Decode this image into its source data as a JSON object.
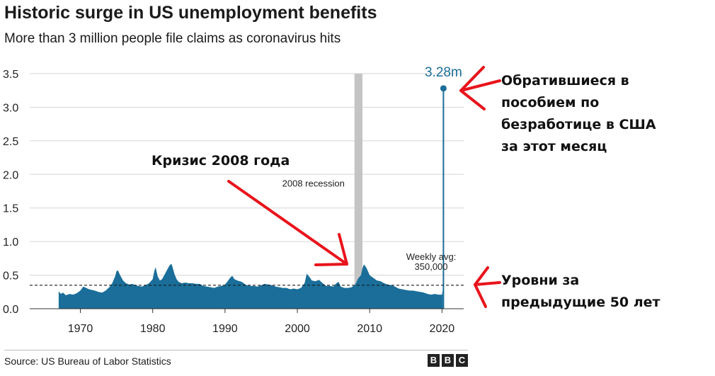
{
  "header": {
    "title": "Historic surge in US unemployment benefits",
    "subtitle": "More than 3 million people file claims as coronavirus hits"
  },
  "footer": {
    "source": "Source: US Bureau of Labor Statistics",
    "logo_letters": [
      "B",
      "B",
      "C"
    ]
  },
  "chart_data": {
    "type": "area",
    "title": "Historic surge in US unemployment benefits",
    "subtitle": "More than 3 million people file claims as coronavirus hits",
    "unit": "millions",
    "ylim": [
      0,
      3.5
    ],
    "xlim": [
      1963,
      2023
    ],
    "yticks": [
      "0.0",
      "0.5",
      "1.0",
      "1.5",
      "2.0",
      "2.5",
      "3.0",
      "3.5"
    ],
    "xticks": [
      "1970",
      "1980",
      "1990",
      "2000",
      "2010",
      "2020"
    ],
    "grid": true,
    "series": [
      {
        "name": "",
        "color": "#1a6e99",
        "x": [
          1967.0,
          1967.3,
          1967.6,
          1968.0,
          1968.5,
          1969.0,
          1969.5,
          1970.0,
          1970.4,
          1970.8,
          1971.2,
          1971.6,
          1972.0,
          1972.5,
          1973.0,
          1973.5,
          1974.0,
          1974.4,
          1974.8,
          1975.0,
          1975.2,
          1975.5,
          1975.9,
          1976.3,
          1976.8,
          1977.2,
          1977.6,
          1978.0,
          1978.5,
          1979.0,
          1979.5,
          1980.0,
          1980.2,
          1980.4,
          1980.7,
          1981.0,
          1981.3,
          1981.6,
          1982.0,
          1982.3,
          1982.6,
          1982.8,
          1983.0,
          1983.3,
          1983.6,
          1984.0,
          1984.5,
          1985.0,
          1985.5,
          1986.0,
          1986.5,
          1987.0,
          1987.5,
          1988.0,
          1988.5,
          1989.0,
          1989.5,
          1990.0,
          1990.3,
          1990.7,
          1991.0,
          1991.3,
          1991.7,
          1992.0,
          1992.3,
          1992.7,
          1993.0,
          1993.5,
          1994.0,
          1994.5,
          1995.0,
          1995.5,
          1996.0,
          1996.5,
          1997.0,
          1997.5,
          1998.0,
          1998.5,
          1999.0,
          1999.5,
          2000.0,
          2000.5,
          2001.0,
          2001.3,
          2001.7,
          2002.0,
          2002.5,
          2003.0,
          2003.5,
          2004.0,
          2004.5,
          2005.0,
          2005.3,
          2005.7,
          2006.0,
          2006.5,
          2007.0,
          2007.5,
          2008.0,
          2008.4,
          2008.8,
          2009.0,
          2009.2,
          2009.5,
          2009.8,
          2010.0,
          2010.5,
          2011.0,
          2011.5,
          2012.0,
          2012.5,
          2013.0,
          2013.5,
          2014.0,
          2014.5,
          2015.0,
          2015.5,
          2016.0,
          2016.5,
          2017.0,
          2017.5,
          2018.0,
          2018.5,
          2019.0,
          2019.5,
          2020.0,
          2020.1,
          2020.2
        ],
        "values": [
          0.26,
          0.22,
          0.24,
          0.2,
          0.22,
          0.21,
          0.23,
          0.27,
          0.33,
          0.31,
          0.29,
          0.28,
          0.27,
          0.25,
          0.24,
          0.27,
          0.32,
          0.38,
          0.48,
          0.56,
          0.57,
          0.5,
          0.42,
          0.38,
          0.36,
          0.37,
          0.35,
          0.34,
          0.33,
          0.35,
          0.38,
          0.44,
          0.55,
          0.62,
          0.48,
          0.42,
          0.44,
          0.5,
          0.58,
          0.64,
          0.67,
          0.6,
          0.52,
          0.44,
          0.4,
          0.38,
          0.39,
          0.38,
          0.38,
          0.37,
          0.37,
          0.34,
          0.33,
          0.32,
          0.31,
          0.33,
          0.34,
          0.36,
          0.4,
          0.46,
          0.49,
          0.44,
          0.42,
          0.41,
          0.4,
          0.37,
          0.35,
          0.34,
          0.34,
          0.33,
          0.35,
          0.37,
          0.36,
          0.35,
          0.33,
          0.32,
          0.31,
          0.31,
          0.29,
          0.3,
          0.29,
          0.31,
          0.38,
          0.52,
          0.47,
          0.42,
          0.41,
          0.43,
          0.38,
          0.34,
          0.34,
          0.33,
          0.37,
          0.4,
          0.33,
          0.31,
          0.31,
          0.32,
          0.36,
          0.45,
          0.5,
          0.6,
          0.66,
          0.62,
          0.55,
          0.5,
          0.46,
          0.42,
          0.41,
          0.38,
          0.36,
          0.35,
          0.33,
          0.3,
          0.29,
          0.28,
          0.27,
          0.27,
          0.26,
          0.25,
          0.24,
          0.22,
          0.21,
          0.22,
          0.21,
          0.21,
          0.28,
          3.28
        ]
      }
    ],
    "recession_band": {
      "label": "2008 recession",
      "x_start": 2007.9,
      "x_end": 2009.0
    },
    "average_line": {
      "value": 0.35,
      "label_line1": "Weekly avg:",
      "label_line2": "350,000"
    },
    "peak": {
      "x": 2020.2,
      "value": 3.28,
      "label": "3.28m"
    }
  },
  "annotations_ru": {
    "crisis": "Кризис 2008 года",
    "peak_note": "Обратившиеся в\nпособием по\nбезработице в США\nза этот месяц",
    "levels_note": "Уровни за\nпредыдущие 50 лет",
    "arrow_color": "#e8141b"
  }
}
